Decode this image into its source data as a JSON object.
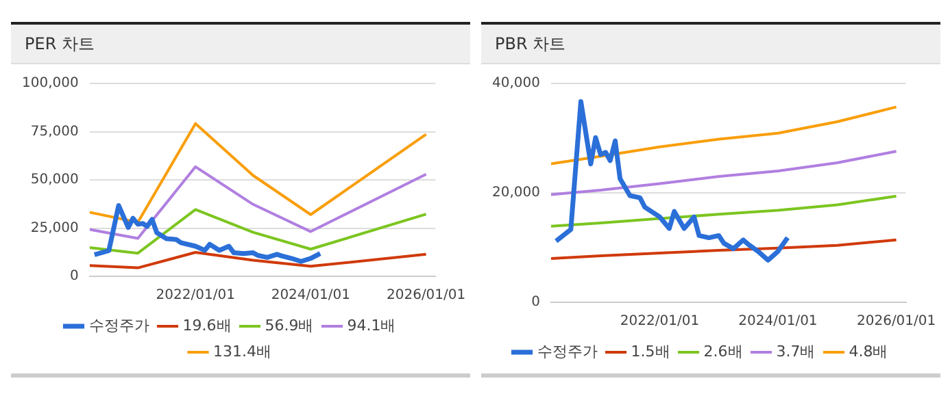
{
  "chart_data": [
    {
      "type": "line",
      "title": "PER 차트",
      "legend": "bottom",
      "grid": "y",
      "xlim": [
        "2020-03",
        "2026-03"
      ],
      "xticks": [
        {
          "value": "2022-01-01",
          "label": "2022/01/01"
        },
        {
          "value": "2024-01-01",
          "label": "2024/01/01"
        },
        {
          "value": "2026-01-01",
          "label": "2026/01/01"
        }
      ],
      "ylim": [
        0,
        100000
      ],
      "yticks": [
        0,
        {
          "value": 25000,
          "label": "25,000"
        },
        {
          "value": 50000,
          "label": "50,000"
        },
        {
          "value": 75000,
          "label": "75,000"
        },
        {
          "value": 100000,
          "label": "100,000"
        }
      ],
      "series": [
        {
          "name": "수정주가",
          "color": "#2b6fd8",
          "x": [
            "2020-04",
            "2020-07",
            "2020-09",
            "2020-11",
            "2020-12",
            "2021-01",
            "2021-02",
            "2021-03",
            "2021-04",
            "2021-05",
            "2021-07",
            "2021-09",
            "2021-10",
            "2022-01",
            "2022-03",
            "2022-04",
            "2022-06",
            "2022-08",
            "2022-09",
            "2022-11",
            "2023-01",
            "2023-02",
            "2023-04",
            "2023-06",
            "2023-07",
            "2023-09",
            "2023-11",
            "2024-01",
            "2024-03"
          ],
          "values": [
            11200,
            13300,
            36700,
            25300,
            30100,
            27000,
            27400,
            25900,
            29500,
            22600,
            19500,
            19100,
            17400,
            15600,
            13500,
            16600,
            13500,
            15600,
            12200,
            11800,
            12200,
            10800,
            9800,
            11400,
            10600,
            9300,
            7700,
            9300,
            11800
          ]
        },
        {
          "name": "19.6배",
          "color": "#d03a0a",
          "x": [
            "2020-03",
            "2021-01",
            "2022-01",
            "2023-01",
            "2024-01",
            "2026-01"
          ],
          "values": [
            5600,
            4400,
            12400,
            8300,
            5200,
            11400
          ]
        },
        {
          "name": "56.9배",
          "color": "#7cc520",
          "x": [
            "2020-03",
            "2021-01",
            "2022-01",
            "2023-01",
            "2024-01",
            "2026-01"
          ],
          "values": [
            14900,
            12000,
            34600,
            22800,
            14100,
            32200
          ]
        },
        {
          "name": "94.1배",
          "color": "#b07fe0",
          "x": [
            "2020-03",
            "2021-01",
            "2022-01",
            "2023-01",
            "2024-01",
            "2026-01"
          ],
          "values": [
            24300,
            19700,
            56800,
            37300,
            23200,
            52900
          ]
        },
        {
          "name": "131.4배",
          "color": "#f99e0a",
          "x": [
            "2020-03",
            "2021-01",
            "2022-01",
            "2023-01",
            "2024-01",
            "2026-01"
          ],
          "values": [
            33200,
            28000,
            79200,
            52300,
            32000,
            73600
          ]
        }
      ]
    },
    {
      "type": "line",
      "title": "PBR 차트",
      "legend": "bottom",
      "grid": "y",
      "xlim": [
        "2020-03",
        "2026-03"
      ],
      "xticks": [
        {
          "value": "2022-01-01",
          "label": "2022/01/01"
        },
        {
          "value": "2024-01-01",
          "label": "2024/01/01"
        },
        {
          "value": "2026-01-01",
          "label": "2026/01/01"
        }
      ],
      "ylim": [
        0,
        40000
      ],
      "yticks": [
        0,
        {
          "value": 20000,
          "label": "20,000"
        },
        {
          "value": 40000,
          "label": "40,000"
        }
      ],
      "series": [
        {
          "name": "수정주가",
          "color": "#2b6fd8",
          "x": [
            "2020-04",
            "2020-07",
            "2020-09",
            "2020-11",
            "2020-12",
            "2021-01",
            "2021-02",
            "2021-03",
            "2021-04",
            "2021-05",
            "2021-07",
            "2021-09",
            "2021-10",
            "2022-01",
            "2022-03",
            "2022-04",
            "2022-06",
            "2022-08",
            "2022-09",
            "2022-11",
            "2023-01",
            "2023-02",
            "2023-04",
            "2023-06",
            "2023-07",
            "2023-09",
            "2023-11",
            "2024-01",
            "2024-03"
          ],
          "values": [
            11200,
            13300,
            36700,
            25300,
            30100,
            27000,
            27400,
            25900,
            29500,
            22600,
            19500,
            19100,
            17400,
            15600,
            13500,
            16600,
            13500,
            15600,
            12200,
            11800,
            12200,
            10800,
            9800,
            11400,
            10600,
            9300,
            7700,
            9300,
            11800
          ]
        },
        {
          "name": "1.5배",
          "color": "#d03a0a",
          "x": [
            "2020-03",
            "2021-01",
            "2022-01",
            "2023-01",
            "2024-01",
            "2025-01",
            "2026-01"
          ],
          "values": [
            8000,
            8500,
            9000,
            9500,
            9900,
            10400,
            11400
          ]
        },
        {
          "name": "2.6배",
          "color": "#7cc520",
          "x": [
            "2020-03",
            "2021-01",
            "2022-01",
            "2023-01",
            "2024-01",
            "2025-01",
            "2026-01"
          ],
          "values": [
            13900,
            14500,
            15300,
            16100,
            16800,
            17800,
            19400
          ]
        },
        {
          "name": "3.7배",
          "color": "#b07fe0",
          "x": [
            "2020-03",
            "2021-01",
            "2022-01",
            "2023-01",
            "2024-01",
            "2025-01",
            "2026-01"
          ],
          "values": [
            19700,
            20500,
            21700,
            23000,
            24000,
            25500,
            27600
          ]
        },
        {
          "name": "4.8배",
          "color": "#f99e0a",
          "x": [
            "2020-03",
            "2021-01",
            "2022-01",
            "2023-01",
            "2024-01",
            "2025-01",
            "2026-01"
          ],
          "values": [
            25300,
            26700,
            28400,
            29800,
            30900,
            33000,
            35700
          ]
        }
      ]
    }
  ]
}
